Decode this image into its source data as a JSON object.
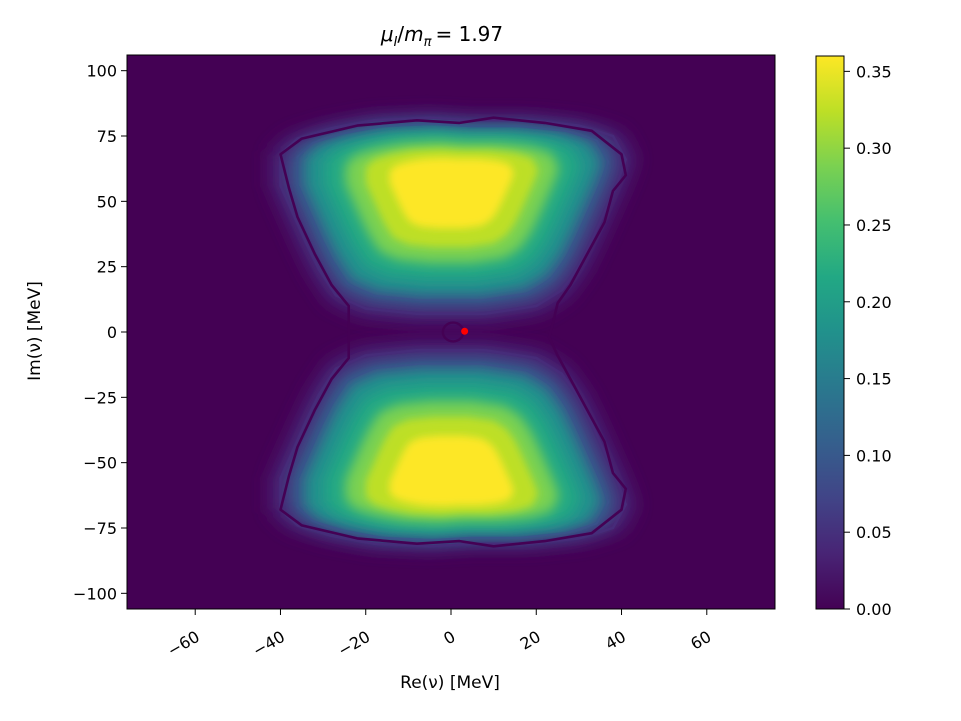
{
  "chart_data": {
    "type": "heatmap",
    "title": "μ_I/m_π = 1.97",
    "title_parts": {
      "mu": "μ",
      "mu_sub": "I",
      "m": "m",
      "m_sub": "π",
      "value": "= 1.97"
    },
    "xlabel": "Re(ν) [MeV]",
    "ylabel": "Im(ν) [MeV]",
    "xlim": [
      -76,
      76
    ],
    "ylim": [
      -106,
      106
    ],
    "xticks": [
      -60,
      -40,
      -20,
      0,
      20,
      40,
      60
    ],
    "yticks": [
      -100,
      -75,
      -50,
      -25,
      0,
      25,
      50,
      75,
      100
    ],
    "xtick_labels": [
      "−60",
      "−40",
      "−20",
      "0",
      "20",
      "40",
      "60"
    ],
    "ytick_labels": [
      "−100",
      "−75",
      "−50",
      "−25",
      "0",
      "25",
      "50",
      "75",
      "100"
    ],
    "colorbar": {
      "colormap": "viridis",
      "range": [
        0,
        0.36
      ],
      "ticks": [
        0.0,
        0.05,
        0.1,
        0.15,
        0.2,
        0.25,
        0.3,
        0.35
      ],
      "tick_labels": [
        "0.00",
        "0.05",
        "0.10",
        "0.15",
        "0.20",
        "0.25",
        "0.30",
        "0.35"
      ]
    },
    "density_lobes": [
      {
        "name": "upper",
        "center_y": 58,
        "peak": 0.36,
        "boundary": [
          [
            -40,
            68
          ],
          [
            -36,
            74
          ],
          [
            -28,
            78
          ],
          [
            -18,
            81
          ],
          [
            -5,
            82
          ],
          [
            5,
            81
          ],
          [
            18,
            81
          ],
          [
            30,
            79
          ],
          [
            38,
            75
          ],
          [
            41,
            66
          ],
          [
            39,
            57
          ],
          [
            36,
            46
          ],
          [
            33,
            35
          ],
          [
            30,
            25
          ],
          [
            26,
            16
          ],
          [
            20,
            10
          ],
          [
            8,
            7
          ],
          [
            -8,
            7
          ],
          [
            -20,
            9
          ],
          [
            -27,
            14
          ],
          [
            -31,
            24
          ],
          [
            -34,
            34
          ],
          [
            -37,
            45
          ],
          [
            -40,
            56
          ]
        ]
      },
      {
        "name": "lower",
        "center_y": -58,
        "peak": 0.36,
        "boundary": [
          [
            -40,
            -68
          ],
          [
            -36,
            -74
          ],
          [
            -28,
            -78
          ],
          [
            -18,
            -81
          ],
          [
            -5,
            -82
          ],
          [
            5,
            -81
          ],
          [
            18,
            -81
          ],
          [
            30,
            -79
          ],
          [
            38,
            -75
          ],
          [
            41,
            -66
          ],
          [
            39,
            -57
          ],
          [
            36,
            -46
          ],
          [
            33,
            -35
          ],
          [
            30,
            -25
          ],
          [
            26,
            -16
          ],
          [
            20,
            -10
          ],
          [
            8,
            -7
          ],
          [
            -8,
            -7
          ],
          [
            -20,
            -9
          ],
          [
            -27,
            -14
          ],
          [
            -31,
            -24
          ],
          [
            -34,
            -34
          ],
          [
            -37,
            -45
          ],
          [
            -40,
            -56
          ]
        ]
      }
    ],
    "outer_contour": [
      [
        -40,
        68
      ],
      [
        -35,
        74
      ],
      [
        -22,
        79
      ],
      [
        -8,
        81
      ],
      [
        2,
        80
      ],
      [
        10,
        82
      ],
      [
        22,
        80
      ],
      [
        33,
        77
      ],
      [
        40,
        68
      ],
      [
        41,
        60
      ],
      [
        38,
        54
      ],
      [
        36,
        42
      ],
      [
        32,
        30
      ],
      [
        28,
        18
      ],
      [
        25,
        11
      ],
      [
        24,
        4
      ],
      [
        23,
        -2
      ],
      [
        25,
        -9
      ],
      [
        28,
        -18
      ],
      [
        32,
        -30
      ],
      [
        36,
        -42
      ],
      [
        38,
        -54
      ],
      [
        41,
        -60
      ],
      [
        40,
        -68
      ],
      [
        33,
        -77
      ],
      [
        22,
        -80
      ],
      [
        10,
        -82
      ],
      [
        2,
        -80
      ],
      [
        -8,
        -81
      ],
      [
        -22,
        -79
      ],
      [
        -35,
        -74
      ],
      [
        -40,
        -68
      ],
      [
        -38,
        -55
      ],
      [
        -36,
        -44
      ],
      [
        -32,
        -30
      ],
      [
        -28,
        -18
      ],
      [
        -24,
        -10
      ],
      [
        -24,
        0
      ],
      [
        -24,
        10
      ],
      [
        -28,
        18
      ],
      [
        -32,
        30
      ],
      [
        -36,
        44
      ],
      [
        -38,
        55
      ]
    ],
    "inner_loop": {
      "center": [
        0.5,
        0
      ],
      "rx": 2.4,
      "ry": 3.6
    },
    "marker": {
      "x": 3.2,
      "y": 0.3,
      "color": "#ff0000"
    }
  }
}
